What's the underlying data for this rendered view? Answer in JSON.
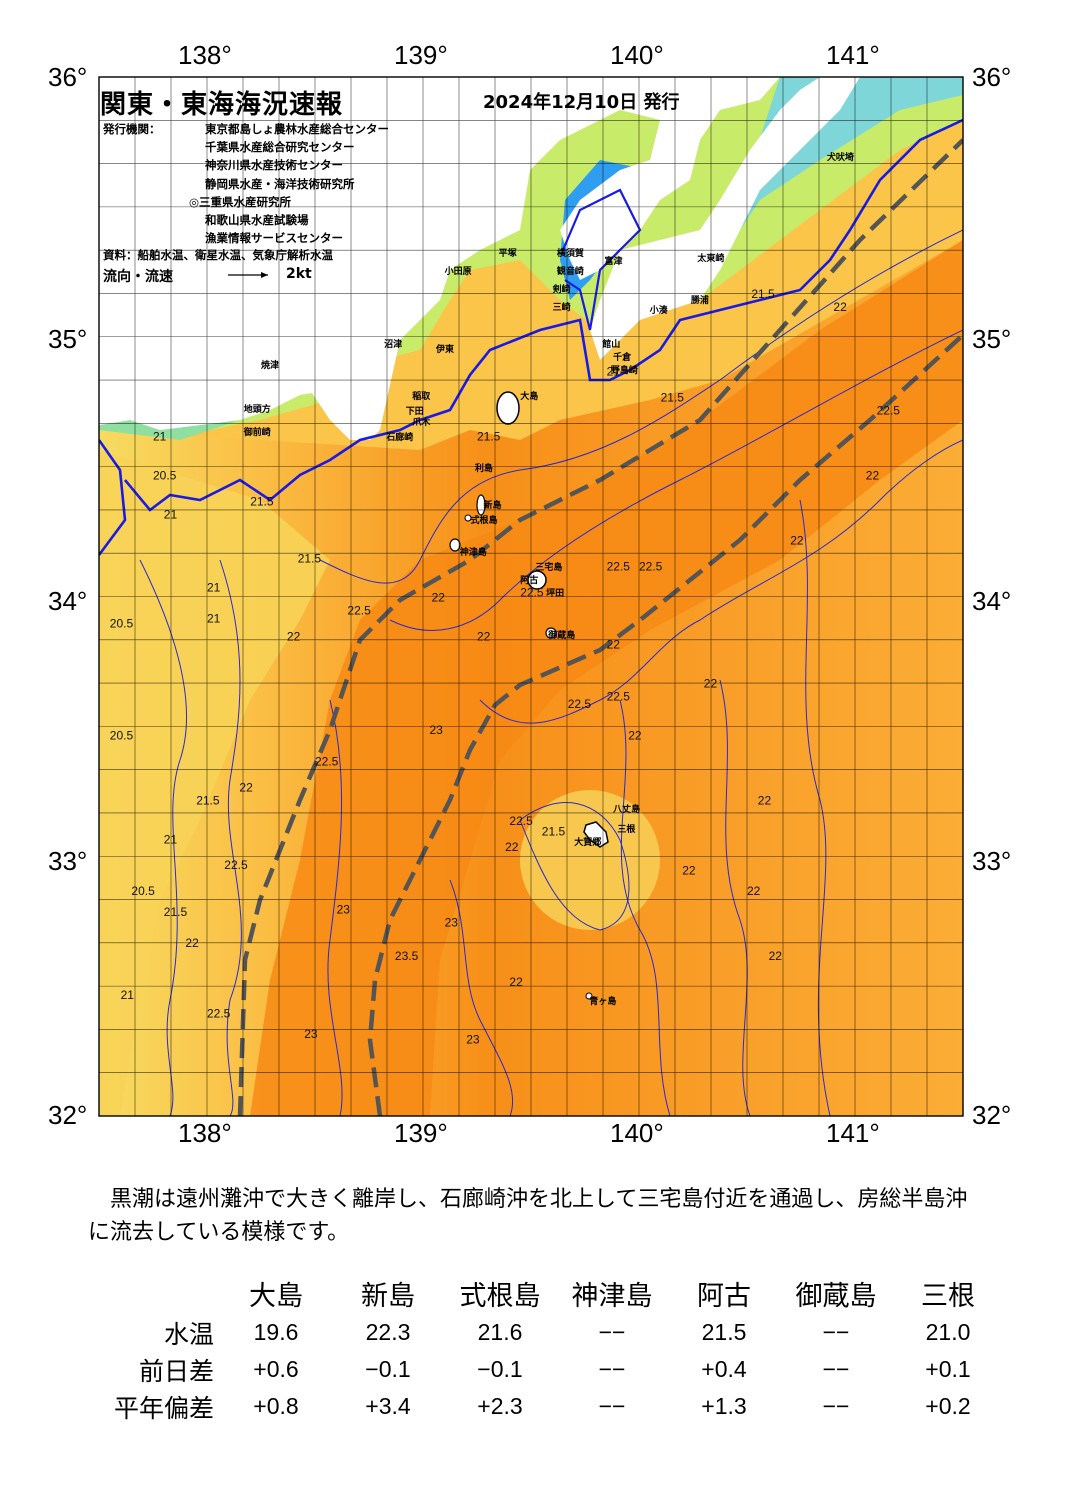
{
  "title": "関東・東海海況速報",
  "issue_date": "2024年12月10日 発行",
  "issuer_label": "発行機関：",
  "issuers": [
    "東京都島しょ農林水産総合センター",
    "千葉県水産総合研究センター",
    "神奈川県水産技術センター",
    "静岡県水産・海洋技術研究所",
    "◎三重県水産研究所",
    "和歌山県水産試験場",
    "漁業情報サービスセンター"
  ],
  "sources": "資料：船舶水温、衛星水温、気象庁解析水温",
  "flow_label": "流向・流速",
  "flow_scale": "2kt",
  "axes": {
    "lon_ticks": [
      "138°",
      "139°",
      "140°",
      "141°"
    ],
    "lat_ticks": [
      "36°",
      "35°",
      "34°",
      "33°",
      "32°"
    ],
    "lon_range": [
      137.5,
      141.5
    ],
    "lat_range": [
      32,
      36
    ]
  },
  "colors": {
    "land": "#ffffff",
    "warm_deep": "#f5820f",
    "warm": "#f9a02a",
    "mid": "#fbbf45",
    "cool": "#f6dd63",
    "coast_cold": "#c8eb6a",
    "bay_cold": "#42b8ef",
    "kuroshio_axis": "#555555",
    "front_line": "#1a1ae6",
    "isotherm": "#2a2ad0"
  },
  "place_names": [
    {
      "name": "犬吠埼",
      "lon": 140.87,
      "lat": 35.72
    },
    {
      "name": "太東崎",
      "lon": 140.27,
      "lat": 35.33
    },
    {
      "name": "勝浦",
      "lon": 140.24,
      "lat": 35.17
    },
    {
      "name": "小湊",
      "lon": 140.05,
      "lat": 35.13
    },
    {
      "name": "富津",
      "lon": 139.84,
      "lat": 35.32
    },
    {
      "name": "館山",
      "lon": 139.83,
      "lat": 35.0
    },
    {
      "name": "千倉",
      "lon": 139.88,
      "lat": 34.95
    },
    {
      "name": "野島崎",
      "lon": 139.87,
      "lat": 34.9
    },
    {
      "name": "平塚",
      "lon": 139.35,
      "lat": 35.35
    },
    {
      "name": "横須賀",
      "lon": 139.62,
      "lat": 35.35
    },
    {
      "name": "観音崎",
      "lon": 139.62,
      "lat": 35.28
    },
    {
      "name": "剣崎",
      "lon": 139.6,
      "lat": 35.21
    },
    {
      "name": "三崎",
      "lon": 139.6,
      "lat": 35.14
    },
    {
      "name": "小田原",
      "lon": 139.1,
      "lat": 35.28
    },
    {
      "name": "沼津",
      "lon": 138.82,
      "lat": 35.0
    },
    {
      "name": "伊東",
      "lon": 139.06,
      "lat": 34.98
    },
    {
      "name": "焼津",
      "lon": 138.25,
      "lat": 34.92
    },
    {
      "name": "大島",
      "lon": 139.45,
      "lat": 34.8
    },
    {
      "name": "稲取",
      "lon": 138.95,
      "lat": 34.8
    },
    {
      "name": "下田",
      "lon": 138.92,
      "lat": 34.74
    },
    {
      "name": "御前崎",
      "lon": 138.17,
      "lat": 34.66
    },
    {
      "name": "地頭方",
      "lon": 138.17,
      "lat": 34.75
    },
    {
      "name": "爪木",
      "lon": 138.95,
      "lat": 34.7
    },
    {
      "name": "石廊崎",
      "lon": 138.83,
      "lat": 34.64
    },
    {
      "name": "利島",
      "lon": 139.24,
      "lat": 34.52
    },
    {
      "name": "新島",
      "lon": 139.28,
      "lat": 34.38
    },
    {
      "name": "式根島",
      "lon": 139.22,
      "lat": 34.32
    },
    {
      "name": "神津島",
      "lon": 139.17,
      "lat": 34.2
    },
    {
      "name": "三宅島",
      "lon": 139.52,
      "lat": 34.14
    },
    {
      "name": "阿古",
      "lon": 139.45,
      "lat": 34.09
    },
    {
      "name": "坪田",
      "lon": 139.57,
      "lat": 34.04
    },
    {
      "name": "御蔵島",
      "lon": 139.58,
      "lat": 33.88
    },
    {
      "name": "八丈島",
      "lon": 139.88,
      "lat": 33.21
    },
    {
      "name": "三根",
      "lon": 139.9,
      "lat": 33.13
    },
    {
      "name": "大賀郷",
      "lon": 139.7,
      "lat": 33.08
    },
    {
      "name": "青ヶ島",
      "lon": 139.77,
      "lat": 32.47
    }
  ],
  "isotherm_labels": [
    {
      "t": "21.5",
      "lon": 139.25,
      "lat": 34.6
    },
    {
      "t": "21",
      "lon": 139.85,
      "lat": 34.85
    },
    {
      "t": "21.5",
      "lon": 140.1,
      "lat": 34.75
    },
    {
      "t": "21.5",
      "lon": 140.52,
      "lat": 35.15
    },
    {
      "t": "22",
      "lon": 140.9,
      "lat": 35.1
    },
    {
      "t": "22.5",
      "lon": 141.1,
      "lat": 34.7
    },
    {
      "t": "22",
      "lon": 141.05,
      "lat": 34.45
    },
    {
      "t": "22",
      "lon": 140.7,
      "lat": 34.2
    },
    {
      "t": "20.5",
      "lon": 137.75,
      "lat": 34.45
    },
    {
      "t": "21",
      "lon": 137.75,
      "lat": 34.6
    },
    {
      "t": "21",
      "lon": 137.8,
      "lat": 34.3
    },
    {
      "t": "21.5",
      "lon": 138.2,
      "lat": 34.35
    },
    {
      "t": "21.5",
      "lon": 138.42,
      "lat": 34.13
    },
    {
      "t": "21",
      "lon": 138.0,
      "lat": 34.02
    },
    {
      "t": "21",
      "lon": 138.0,
      "lat": 33.9
    },
    {
      "t": "20.5",
      "lon": 137.55,
      "lat": 33.88
    },
    {
      "t": "22",
      "lon": 138.37,
      "lat": 33.83
    },
    {
      "t": "22.5",
      "lon": 138.65,
      "lat": 33.93
    },
    {
      "t": "22",
      "lon": 139.04,
      "lat": 33.98
    },
    {
      "t": "22",
      "lon": 139.25,
      "lat": 33.83
    },
    {
      "t": "22.5",
      "lon": 139.45,
      "lat": 34.0
    },
    {
      "t": "22.5",
      "lon": 139.85,
      "lat": 34.1
    },
    {
      "t": "22.5",
      "lon": 140.0,
      "lat": 34.1
    },
    {
      "t": "22",
      "lon": 139.85,
      "lat": 33.8
    },
    {
      "t": "22.5",
      "lon": 139.67,
      "lat": 33.57
    },
    {
      "t": "22.5",
      "lon": 139.85,
      "lat": 33.6
    },
    {
      "t": "22",
      "lon": 139.95,
      "lat": 33.45
    },
    {
      "t": "22",
      "lon": 140.3,
      "lat": 33.65
    },
    {
      "t": "22",
      "lon": 140.55,
      "lat": 33.2
    },
    {
      "t": "22",
      "lon": 140.2,
      "lat": 32.93
    },
    {
      "t": "22",
      "lon": 140.5,
      "lat": 32.85
    },
    {
      "t": "22",
      "lon": 140.6,
      "lat": 32.6
    },
    {
      "t": "20.5",
      "lon": 137.55,
      "lat": 33.45
    },
    {
      "t": "21.5",
      "lon": 137.95,
      "lat": 33.2
    },
    {
      "t": "21",
      "lon": 137.8,
      "lat": 33.05
    },
    {
      "t": "20.5",
      "lon": 137.65,
      "lat": 32.85
    },
    {
      "t": "21.5",
      "lon": 137.8,
      "lat": 32.77
    },
    {
      "t": "21",
      "lon": 137.6,
      "lat": 32.45
    },
    {
      "t": "22",
      "lon": 137.9,
      "lat": 32.65
    },
    {
      "t": "22",
      "lon": 138.15,
      "lat": 33.25
    },
    {
      "t": "22.5",
      "lon": 138.08,
      "lat": 32.95
    },
    {
      "t": "22.5",
      "lon": 138.5,
      "lat": 33.35
    },
    {
      "t": "22.5",
      "lon": 138.0,
      "lat": 32.38
    },
    {
      "t": "23",
      "lon": 138.6,
      "lat": 32.78
    },
    {
      "t": "23",
      "lon": 138.45,
      "lat": 32.3
    },
    {
      "t": "23.5",
      "lon": 138.87,
      "lat": 32.6
    },
    {
      "t": "23",
      "lon": 139.1,
      "lat": 32.73
    },
    {
      "t": "23",
      "lon": 139.2,
      "lat": 32.28
    },
    {
      "t": "22",
      "lon": 139.4,
      "lat": 32.5
    },
    {
      "t": "22.5",
      "lon": 139.4,
      "lat": 33.12
    },
    {
      "t": "22",
      "lon": 139.38,
      "lat": 33.02
    },
    {
      "t": "23",
      "lon": 139.03,
      "lat": 33.47
    },
    {
      "t": "21.5",
      "lon": 139.55,
      "lat": 33.08
    }
  ],
  "summary": "　黒潮は遠州灘沖で大きく離岸し、石廊崎沖を北上して三宅島付近を通過し、房総半島沖に流去している模様です。",
  "observations": {
    "stations": [
      "大島",
      "新島",
      "式根島",
      "神津島",
      "阿古",
      "御蔵島",
      "三根"
    ],
    "rows": [
      {
        "label": "水温",
        "values": [
          "19.6",
          "22.3",
          "21.6",
          "−−",
          "21.5",
          "−−",
          "21.0"
        ]
      },
      {
        "label": "前日差",
        "values": [
          "+0.6",
          "−0.1",
          "−0.1",
          "−−",
          "+0.4",
          "−−",
          "+0.1"
        ]
      },
      {
        "label": "平年偏差",
        "values": [
          "+0.8",
          "+3.4",
          "+2.3",
          "−−",
          "+1.3",
          "−−",
          "+0.2"
        ]
      }
    ]
  }
}
